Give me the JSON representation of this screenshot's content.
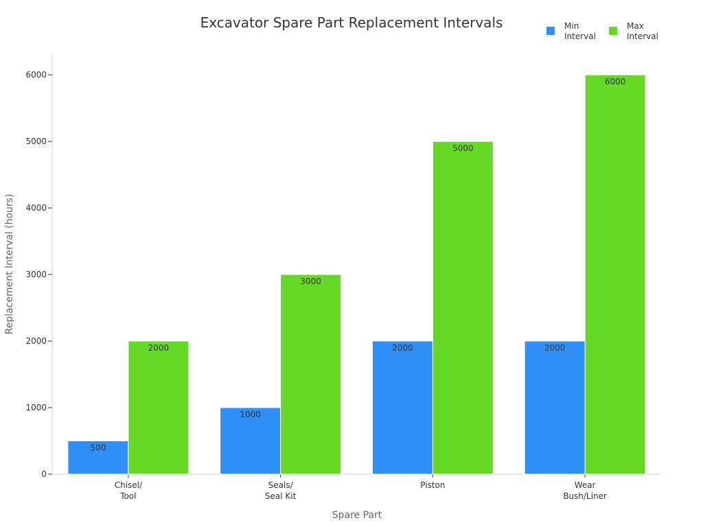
{
  "chart_data": {
    "type": "bar",
    "title": "Excavator Spare Part Replacement Intervals",
    "xlabel": "Spare Part",
    "ylabel": "Replacement Interval (hours)",
    "ylim": [
      0,
      6300
    ],
    "yticks": [
      0,
      1000,
      2000,
      3000,
      4000,
      5000,
      6000
    ],
    "categories": [
      [
        "Chisel/",
        "Tool"
      ],
      [
        "Seals/",
        "Seal Kit"
      ],
      [
        "Piston"
      ],
      [
        "Wear",
        "Bush/Liner"
      ]
    ],
    "series": [
      {
        "name": [
          "Min",
          "Interval"
        ],
        "color": "#2e8ff7",
        "values": [
          500,
          1000,
          2000,
          2000
        ]
      },
      {
        "name": [
          "Max",
          "Interval"
        ],
        "color": "#66d926",
        "values": [
          2000,
          3000,
          5000,
          6000
        ]
      }
    ],
    "grid": false,
    "legend": "top-right",
    "data_labels": true
  }
}
